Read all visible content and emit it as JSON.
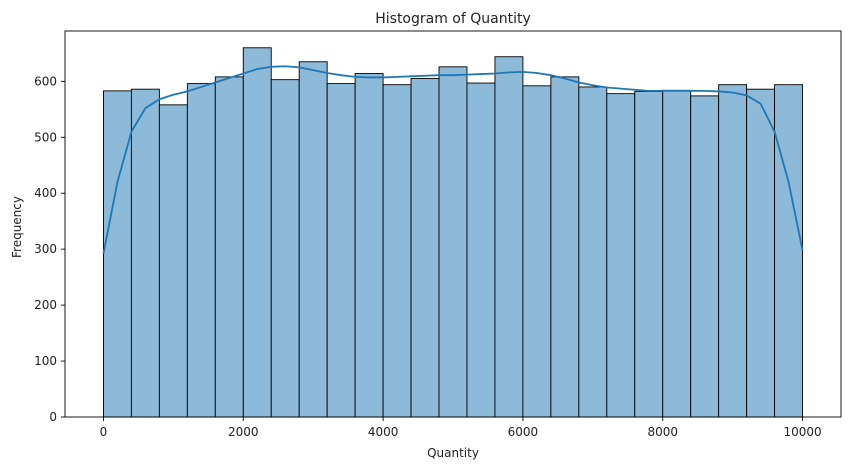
{
  "chart_data": {
    "type": "bar",
    "title": "Histogram of Quantity",
    "xlabel": "Quantity",
    "ylabel": "Frequency",
    "xlim": [
      -550,
      10550
    ],
    "ylim": [
      0,
      690
    ],
    "xticks": [
      0,
      2000,
      4000,
      6000,
      8000,
      10000
    ],
    "yticks": [
      0,
      100,
      200,
      300,
      400,
      500,
      600
    ],
    "bin_edges": [
      0,
      400,
      800,
      1200,
      1600,
      2000,
      2400,
      2800,
      3200,
      3600,
      4000,
      4400,
      4800,
      5200,
      5600,
      6000,
      6400,
      6800,
      7200,
      7600,
      8000,
      8400,
      8800,
      9200,
      9600,
      10000
    ],
    "values": [
      583,
      586,
      558,
      596,
      608,
      660,
      603,
      635,
      596,
      614,
      594,
      605,
      626,
      597,
      644,
      592,
      608,
      590,
      578,
      582,
      584,
      574,
      594,
      586,
      594
    ],
    "kde": {
      "x": [
        0,
        200,
        400,
        600,
        800,
        1000,
        1200,
        1400,
        1600,
        1800,
        2000,
        2200,
        2400,
        2600,
        2800,
        3000,
        3200,
        3400,
        3600,
        3800,
        4000,
        4200,
        4400,
        4600,
        4800,
        5000,
        5200,
        5400,
        5600,
        5800,
        6000,
        6200,
        6400,
        6600,
        6800,
        7000,
        7200,
        7400,
        7600,
        7800,
        8000,
        8200,
        8400,
        8600,
        8800,
        9000,
        9200,
        9400,
        9600,
        9800,
        10000
      ],
      "y": [
        292,
        420,
        510,
        552,
        568,
        576,
        582,
        590,
        598,
        606,
        614,
        622,
        626,
        627,
        625,
        620,
        615,
        611,
        608,
        607,
        607,
        608,
        609,
        610,
        611,
        611,
        612,
        613,
        614,
        616,
        617,
        615,
        611,
        605,
        598,
        593,
        589,
        587,
        585,
        583,
        583,
        583,
        583,
        583,
        582,
        580,
        575,
        560,
        510,
        420,
        298
      ]
    },
    "bar_color": "#8ebad9",
    "bar_edge_color": "#000000",
    "kde_color": "#1f77b4",
    "grid": false,
    "legend": "none"
  }
}
